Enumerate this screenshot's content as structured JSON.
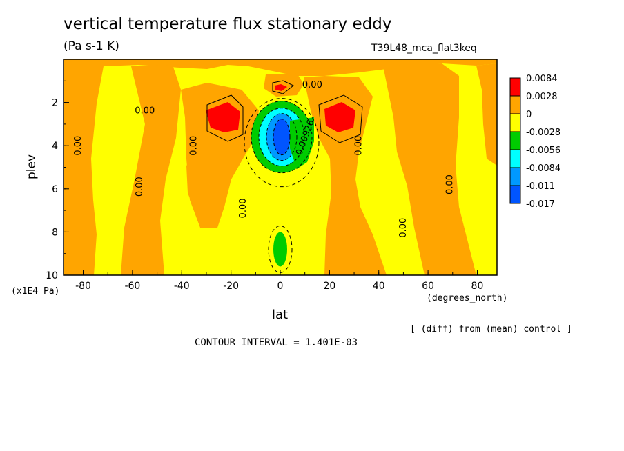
{
  "title": "vertical temperature flux stationary eddy",
  "units": "(Pa s-1 K)",
  "run_label": "T39L48_mca_flat3keq",
  "y_scale": "(x1E4 Pa)",
  "x_unit": "(degrees_north)",
  "diff_note": "[ (diff) from (mean) control ]",
  "contour_interval": "CONTOUR INTERVAL = 1.401E-03",
  "chart_data": {
    "type": "heatmap",
    "xlabel": "lat",
    "ylabel": "plev",
    "xlim": [
      -88,
      88
    ],
    "ylim": [
      10,
      0
    ],
    "x_ticks": [
      "-80",
      "-60",
      "-40",
      "-20",
      "0",
      "20",
      "40",
      "60",
      "80"
    ],
    "y_ticks": [
      "2",
      "4",
      "6",
      "8",
      "10"
    ],
    "colorbar": {
      "labels": [
        "0.0084",
        "0.0028",
        "0",
        "-0.0028",
        "-0.0056",
        "-0.0084",
        "-0.011",
        "-0.017"
      ],
      "colors": [
        "#ff0000",
        "#ffa500",
        "#ffff00",
        "#00cc00",
        "#00ffff",
        "#0099ff",
        "#0055ff"
      ]
    },
    "regions": [
      {
        "name": "background",
        "level": "0 to -0.0028",
        "color": "#ffff00"
      },
      {
        "name": "upper-band",
        "level": "0 to 0.0028",
        "color": "#ffa500",
        "lat": [
          -88,
          88
        ],
        "plev": [
          0,
          1.5
        ]
      },
      {
        "name": "sh-column-80",
        "level": "0 to 0.0028",
        "color": "#ffa500",
        "lat": [
          -86,
          -70
        ],
        "plev": [
          0,
          10
        ]
      },
      {
        "name": "sh-column-55",
        "level": "0 to 0.0028",
        "color": "#ffa500",
        "lat": [
          -62,
          -40
        ],
        "plev": [
          0,
          10
        ]
      },
      {
        "name": "sh-column-30",
        "level": "0 to 0.0028",
        "color": "#ffa500",
        "lat": [
          -38,
          -15
        ],
        "plev": [
          1.5,
          7.5
        ]
      },
      {
        "name": "nh-column-25",
        "level": "0 to 0.0028",
        "color": "#ffa500",
        "lat": [
          15,
          45
        ],
        "plev": [
          1.5,
          10
        ]
      },
      {
        "name": "nh-column-65",
        "level": "0 to 0.0028",
        "color": "#ffa500",
        "lat": [
          55,
          75
        ],
        "plev": [
          1.5,
          10
        ]
      },
      {
        "name": "sh-max",
        "level": "> 0.0084",
        "color": "#ff0000",
        "lat": -23,
        "plev": 2.7
      },
      {
        "name": "nh-max",
        "level": "> 0.0084",
        "color": "#ff0000",
        "lat": 24,
        "plev": 2.7
      },
      {
        "name": "top-max",
        "level": "> 0.0084",
        "color": "#ff0000",
        "lat": 0,
        "plev": 1.3
      },
      {
        "name": "eq-min",
        "level": "< -0.017",
        "color": "#0055ff",
        "lat": 0,
        "plev": 3.6
      },
      {
        "name": "eq-lower-min",
        "level": "-0.0028 to -0.0056",
        "color": "#00cc00",
        "lat": 0,
        "plev": 8.8
      }
    ],
    "contour_labels": [
      {
        "text": "0.00",
        "lat": -55,
        "plev": 2.4
      },
      {
        "text": "0.00",
        "lat": 13,
        "plev": 1.2
      },
      {
        "text": "0.00",
        "lat": -82,
        "plev": 4.0
      },
      {
        "text": "0.00",
        "lat": -35,
        "plev": 4.0
      },
      {
        "text": "0.00",
        "lat": -57,
        "plev": 5.9
      },
      {
        "text": "0.00",
        "lat": -15,
        "plev": 6.9
      },
      {
        "text": "0.00",
        "lat": 32,
        "plev": 4.0
      },
      {
        "text": "0.00",
        "lat": 50,
        "plev": 7.8
      },
      {
        "text": "0.00",
        "lat": 69,
        "plev": 5.8
      },
      {
        "text": "-0.00926",
        "lat": 10,
        "plev": 3.7
      }
    ]
  }
}
